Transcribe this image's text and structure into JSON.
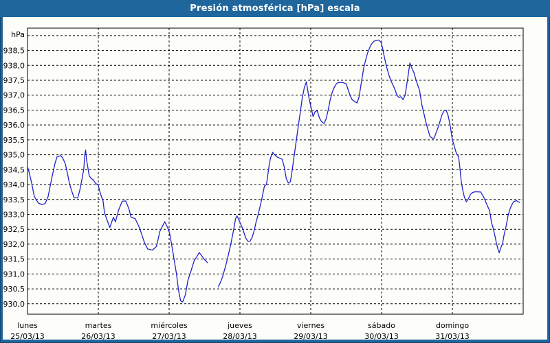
{
  "window": {
    "title": "Presión atmosférica [hPa] escala"
  },
  "colors": {
    "titlebar_bg": "#1F669C",
    "window_border": "#1F669C",
    "window_edge_dark": "#16456E",
    "canvas_bg": "#FDFDFA",
    "plot_border": "#000000",
    "gridline": "#000000",
    "label_text": "#000000",
    "title_text": "#FFFFFF",
    "series_line": "#2121CC"
  },
  "chart_data": {
    "type": "line",
    "title": "Presión atmosférica [hPa] escala",
    "grid": "dashed",
    "legend": "none",
    "y_axis": {
      "unit_label": "hPa",
      "tick_min": 930.0,
      "tick_max": 939.0,
      "tick_step": 0.5,
      "labeled_min": 930.0,
      "labeled_max": 938.5,
      "decimal_separator": ",",
      "render_range": [
        929.65,
        939.25
      ]
    },
    "x_axis": {
      "unit": "hours since lunes 25/03/13 00:00",
      "range_hours": [
        0,
        168
      ],
      "gridline_every_hours": 24,
      "days": [
        {
          "name": "lunes",
          "date": "25/03/13"
        },
        {
          "name": "martes",
          "date": "26/03/13"
        },
        {
          "name": "miércoles",
          "date": "27/03/13"
        },
        {
          "name": "jueves",
          "date": "28/03/13"
        },
        {
          "name": "viernes",
          "date": "29/03/13"
        },
        {
          "name": "sábado",
          "date": "30/03/13"
        },
        {
          "name": "domingo",
          "date": "31/03/13"
        }
      ]
    },
    "series": [
      {
        "name": "Presión atmosférica",
        "color": "#2121CC",
        "note": "gap in data on miércoles between hour 61 and hour 64.7",
        "segments": [
          [
            [
              0,
              934.6
            ],
            [
              0.7,
              934.36
            ],
            [
              1.4,
              934.05
            ],
            [
              2.3,
              933.6
            ],
            [
              3,
              933.48
            ],
            [
              3.7,
              933.38
            ],
            [
              4.9,
              933.33
            ],
            [
              6,
              933.36
            ],
            [
              7,
              933.6
            ],
            [
              7.7,
              933.95
            ],
            [
              8.4,
              934.3
            ],
            [
              9.3,
              934.7
            ],
            [
              10,
              934.93
            ],
            [
              11.2,
              934.97
            ],
            [
              11.9,
              934.9
            ],
            [
              12.8,
              934.7
            ],
            [
              13.5,
              934.4
            ],
            [
              14.2,
              934.05
            ],
            [
              15.1,
              933.75
            ],
            [
              15.8,
              933.56
            ],
            [
              17,
              933.55
            ],
            [
              17.7,
              933.8
            ],
            [
              18.6,
              934.25
            ],
            [
              19.1,
              934.55
            ],
            [
              19.4,
              935
            ],
            [
              19.7,
              935.16
            ],
            [
              20,
              934.85
            ],
            [
              20.5,
              934.55
            ],
            [
              20.9,
              934.3
            ],
            [
              21.6,
              934.2
            ],
            [
              22.3,
              934.16
            ],
            [
              23,
              934.05
            ],
            [
              24,
              933.97
            ],
            [
              24.7,
              933.7
            ],
            [
              25.6,
              933.45
            ],
            [
              26.1,
              933.05
            ],
            [
              27,
              932.8
            ],
            [
              27.9,
              932.56
            ],
            [
              29.1,
              932.9
            ],
            [
              29.8,
              932.75
            ],
            [
              30.9,
              933.15
            ],
            [
              32.1,
              933.44
            ],
            [
              33.3,
              933.45
            ],
            [
              34.4,
              933.18
            ],
            [
              35.1,
              932.9
            ],
            [
              36.5,
              932.86
            ],
            [
              37.9,
              932.56
            ],
            [
              39.6,
              932.06
            ],
            [
              40.7,
              931.84
            ],
            [
              42.3,
              931.8
            ],
            [
              43.7,
              931.92
            ],
            [
              44.9,
              932.44
            ],
            [
              46.5,
              932.75
            ],
            [
              47.5,
              932.55
            ],
            [
              48.2,
              932.35
            ],
            [
              49.3,
              931.72
            ],
            [
              50.5,
              931
            ],
            [
              51.2,
              930.45
            ],
            [
              51.9,
              930.1
            ],
            [
              52.6,
              930.06
            ],
            [
              53.5,
              930.3
            ],
            [
              54.4,
              930.8
            ],
            [
              55.4,
              931.1
            ],
            [
              56.5,
              931.45
            ],
            [
              57.5,
              931.6
            ],
            [
              58.2,
              931.72
            ],
            [
              59.1,
              931.6
            ],
            [
              60,
              931.48
            ],
            [
              61,
              931.38
            ]
          ],
          [
            [
              64.7,
              930.57
            ],
            [
              65.4,
              930.72
            ],
            [
              66.1,
              930.9
            ],
            [
              66.8,
              931.15
            ],
            [
              67.5,
              931.4
            ],
            [
              68.2,
              931.7
            ],
            [
              68.9,
              932
            ],
            [
              69.8,
              932.45
            ],
            [
              70.5,
              932.85
            ],
            [
              71,
              932.95
            ],
            [
              71.7,
              932.8
            ],
            [
              72.6,
              932.6
            ],
            [
              73.3,
              932.4
            ],
            [
              74,
              932.2
            ],
            [
              74.7,
              932.1
            ],
            [
              75.4,
              932.1
            ],
            [
              76.1,
              932.22
            ],
            [
              76.8,
              932.45
            ],
            [
              77.5,
              932.75
            ],
            [
              78.2,
              933
            ],
            [
              78.9,
              933.3
            ],
            [
              79.6,
              933.6
            ],
            [
              80.3,
              933.95
            ],
            [
              81,
              934
            ],
            [
              81.9,
              934.65
            ],
            [
              82.4,
              934.9
            ],
            [
              83.1,
              935.08
            ],
            [
              83.8,
              935
            ],
            [
              84.7,
              934.92
            ],
            [
              85.6,
              934.88
            ],
            [
              86.3,
              934.85
            ],
            [
              87,
              934.6
            ],
            [
              87.7,
              934.2
            ],
            [
              88.4,
              934.05
            ],
            [
              89.1,
              934.1
            ],
            [
              89.6,
              934.4
            ],
            [
              90.3,
              934.9
            ],
            [
              91,
              935.4
            ],
            [
              91.7,
              935.9
            ],
            [
              92.4,
              936.4
            ],
            [
              93.1,
              936.9
            ],
            [
              93.8,
              937.25
            ],
            [
              94.5,
              937.45
            ],
            [
              94.9,
              937.2
            ],
            [
              95.6,
              936.8
            ],
            [
              96.1,
              936.6
            ],
            [
              96.8,
              936.28
            ],
            [
              97.5,
              936.45
            ],
            [
              98.2,
              936.48
            ],
            [
              98.9,
              936.25
            ],
            [
              99.6,
              936.12
            ],
            [
              100.5,
              936.05
            ],
            [
              101.2,
              936.2
            ],
            [
              101.9,
              936.5
            ],
            [
              102.6,
              936.85
            ],
            [
              103.3,
              937.1
            ],
            [
              104,
              937.27
            ],
            [
              104.7,
              937.38
            ],
            [
              105.4,
              937.43
            ],
            [
              107,
              937.42
            ],
            [
              108,
              937.38
            ],
            [
              108.6,
              937.2
            ],
            [
              109.3,
              937
            ],
            [
              110,
              936.85
            ],
            [
              111,
              936.78
            ],
            [
              111.7,
              936.74
            ],
            [
              112.4,
              936.95
            ],
            [
              113.1,
              937.4
            ],
            [
              114,
              937.95
            ],
            [
              115.2,
              938.4
            ],
            [
              116.3,
              938.67
            ],
            [
              117.3,
              938.8
            ],
            [
              118.2,
              938.84
            ],
            [
              119.1,
              938.85
            ],
            [
              119.8,
              938.78
            ],
            [
              120.3,
              938.6
            ],
            [
              121,
              938.25
            ],
            [
              121.7,
              937.95
            ],
            [
              122.4,
              937.7
            ],
            [
              123.1,
              937.5
            ],
            [
              123.8,
              937.35
            ],
            [
              124.5,
              937.2
            ],
            [
              125.2,
              937
            ],
            [
              125.9,
              936.92
            ],
            [
              126.6,
              936.95
            ],
            [
              127.3,
              936.85
            ],
            [
              128,
              937
            ],
            [
              128.7,
              937.45
            ],
            [
              129.2,
              937.8
            ],
            [
              129.6,
              938.08
            ],
            [
              130.3,
              937.9
            ],
            [
              131,
              937.75
            ],
            [
              131.7,
              937.5
            ],
            [
              132.4,
              937.3
            ],
            [
              132.9,
              937.15
            ],
            [
              133.6,
              936.7
            ],
            [
              134.3,
              936.4
            ],
            [
              135,
              936.1
            ],
            [
              135.7,
              935.85
            ],
            [
              136.4,
              935.62
            ],
            [
              137.1,
              935.56
            ],
            [
              137.8,
              935.55
            ],
            [
              138.4,
              935.72
            ],
            [
              139.1,
              935.9
            ],
            [
              139.8,
              936.12
            ],
            [
              140.5,
              936.35
            ],
            [
              141.2,
              936.48
            ],
            [
              141.9,
              936.5
            ],
            [
              142.6,
              936.3
            ],
            [
              143.3,
              935.95
            ],
            [
              144,
              935.5
            ],
            [
              144.5,
              935.35
            ],
            [
              145.2,
              935.1
            ],
            [
              145.6,
              935
            ],
            [
              146.1,
              934.95
            ],
            [
              146.6,
              934.5
            ],
            [
              147,
              934.1
            ],
            [
              147.5,
              933.82
            ],
            [
              148,
              933.6
            ],
            [
              148.7,
              933.42
            ],
            [
              149.4,
              933.52
            ],
            [
              150.1,
              933.67
            ],
            [
              150.8,
              933.73
            ],
            [
              151.7,
              933.76
            ],
            [
              153.6,
              933.75
            ],
            [
              154.5,
              933.6
            ],
            [
              155.4,
              933.4
            ],
            [
              155.9,
              933.28
            ],
            [
              156.6,
              933.13
            ],
            [
              157.3,
              932.7
            ],
            [
              157.8,
              932.55
            ],
            [
              158.5,
              932.25
            ],
            [
              158.9,
              932.05
            ],
            [
              159.4,
              931.85
            ],
            [
              159.9,
              931.71
            ],
            [
              160.3,
              931.85
            ],
            [
              161,
              932.02
            ],
            [
              161.5,
              932.3
            ],
            [
              162.2,
              932.6
            ],
            [
              162.9,
              932.97
            ],
            [
              163.6,
              933.2
            ],
            [
              164.3,
              933.35
            ],
            [
              164.8,
              933.43
            ],
            [
              165.7,
              933.46
            ],
            [
              166.2,
              933.43
            ],
            [
              166.8,
              933.4
            ]
          ]
        ]
      }
    ]
  }
}
